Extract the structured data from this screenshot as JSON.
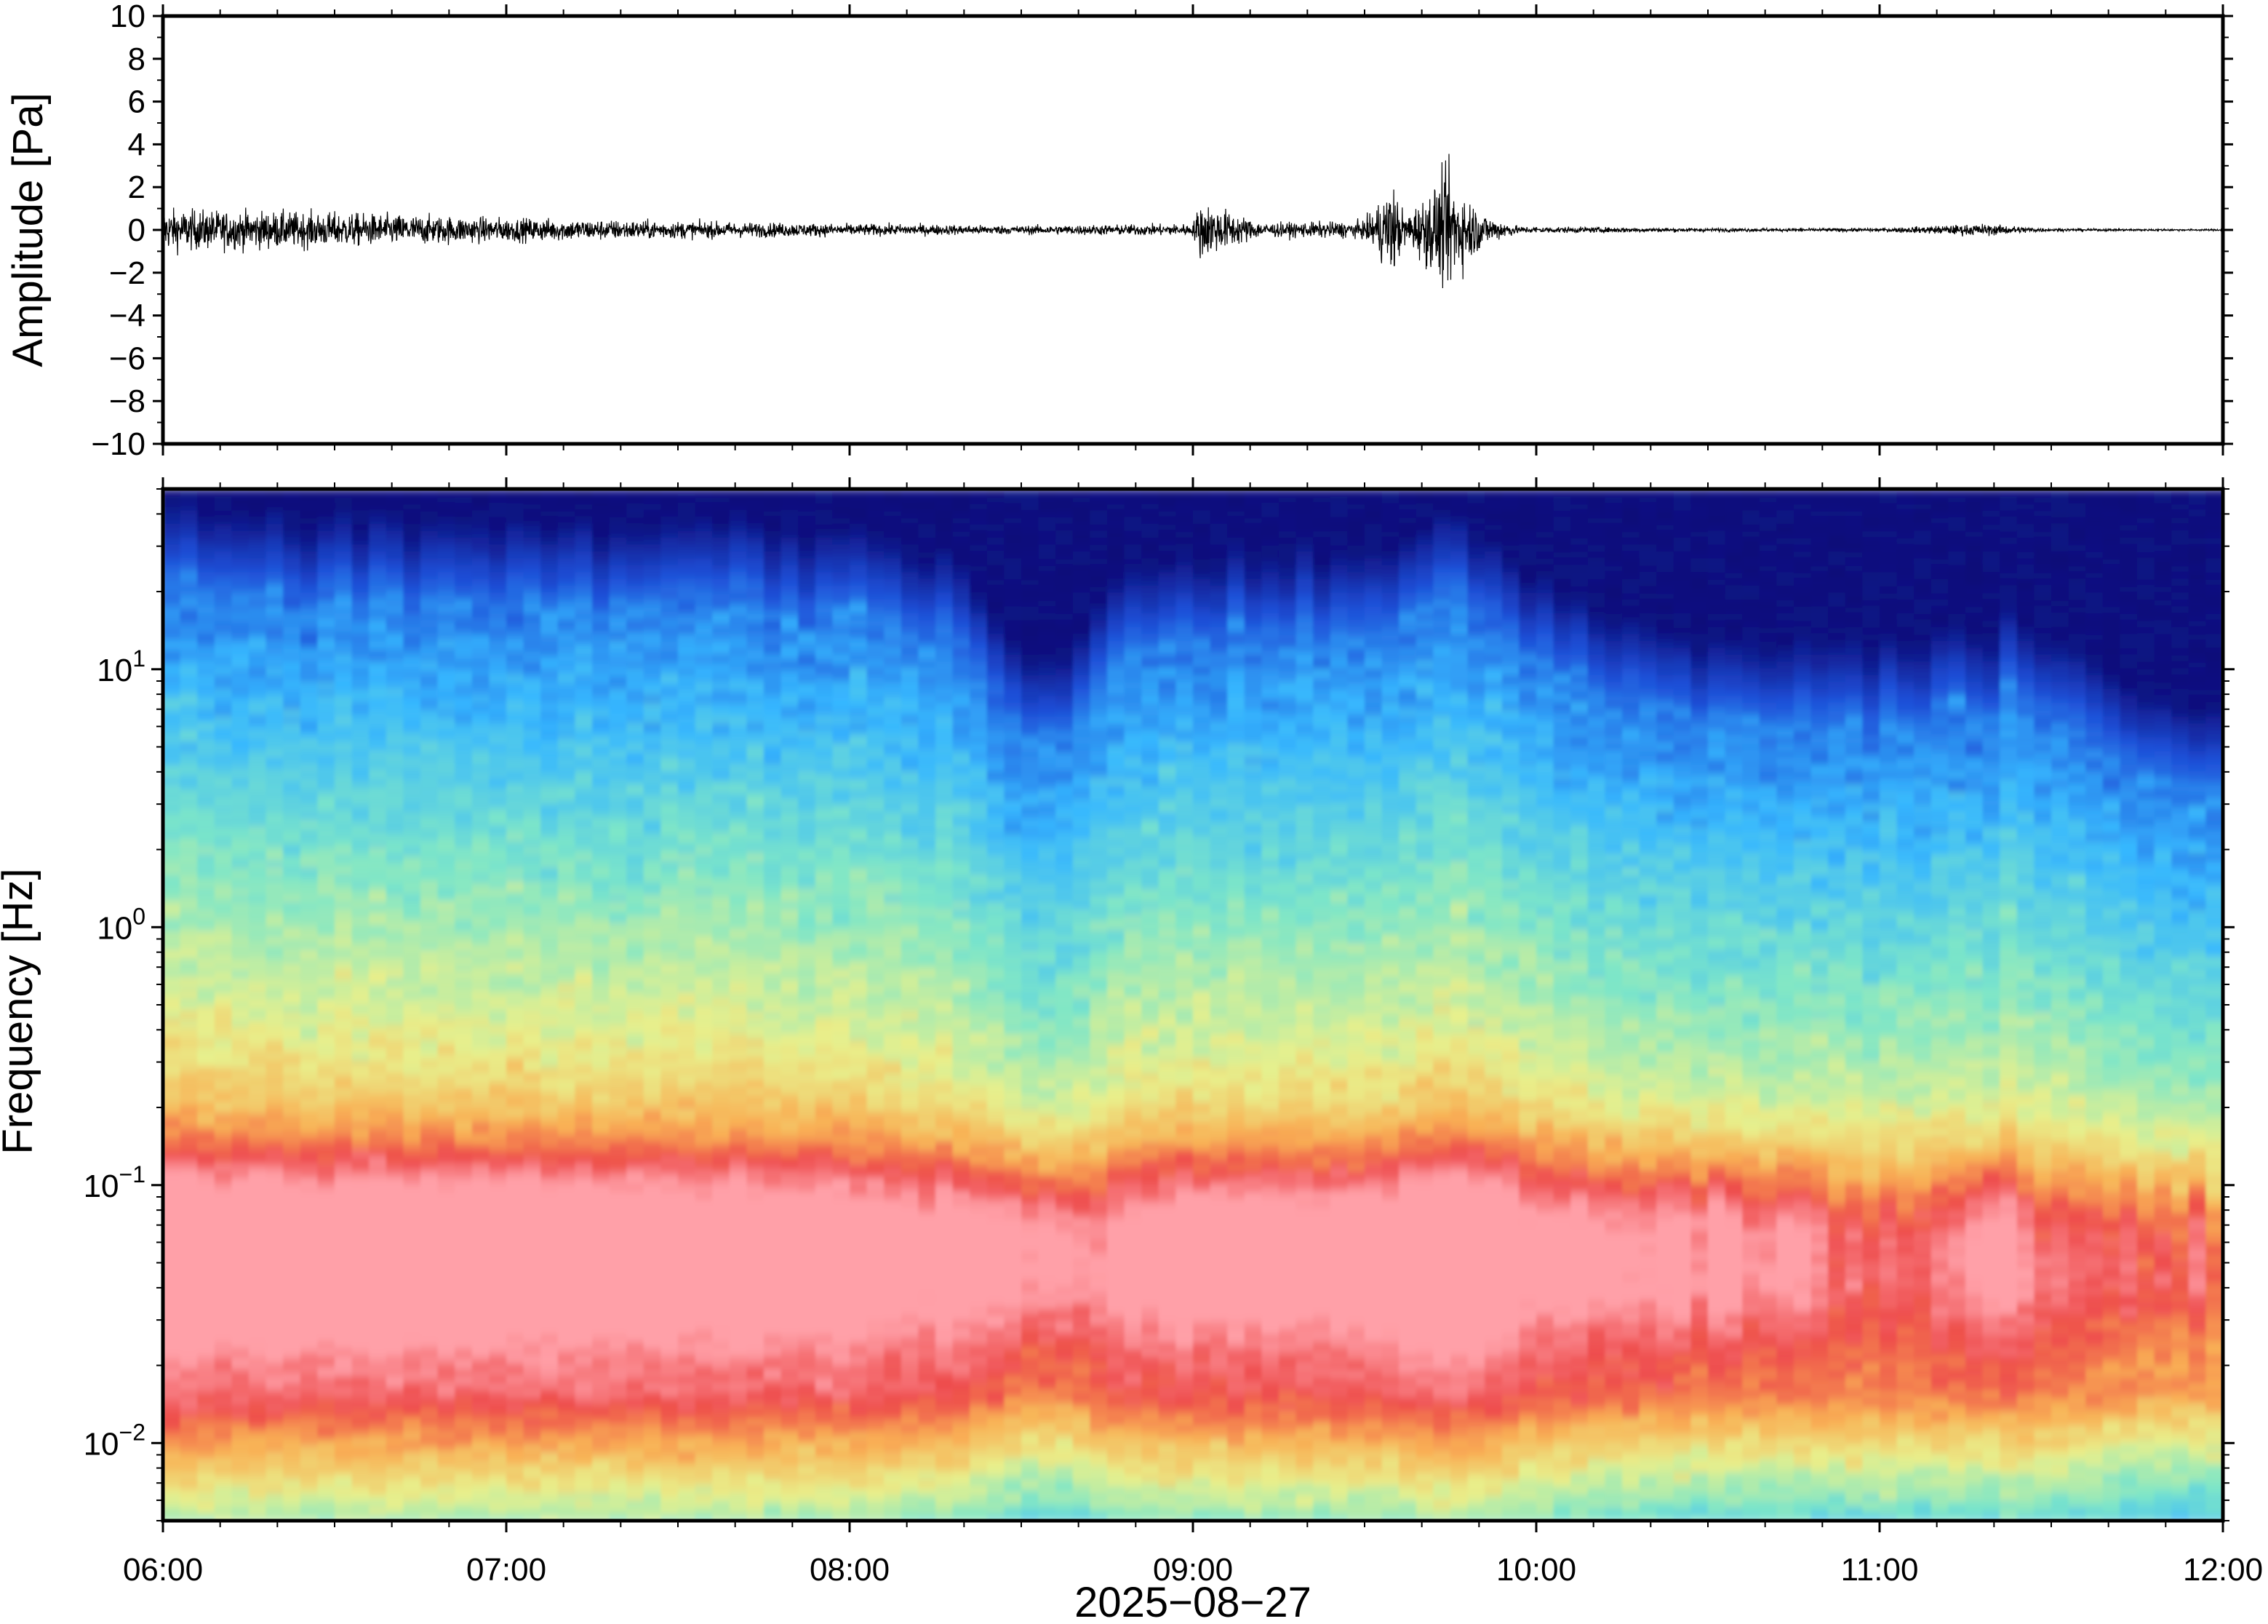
{
  "chart_data": [
    {
      "type": "line",
      "panel": "waveform",
      "ylabel": "Amplitude [Pa]",
      "ylim": [
        -10,
        10
      ],
      "yticks": [
        "10",
        "8",
        "6",
        "4",
        "2",
        "0",
        "−2",
        "−4",
        "−6",
        "−8",
        "−10"
      ],
      "ytick_values": [
        10,
        8,
        6,
        4,
        2,
        0,
        -2,
        -4,
        -6,
        -8,
        -10
      ],
      "xlim_hours": [
        6,
        12
      ],
      "series": [
        {
          "color": "#000000",
          "envelope_time_hours": [
            6.0,
            6.5,
            7.0,
            7.5,
            8.0,
            8.5,
            9.0,
            9.02,
            9.2,
            9.5,
            9.58,
            9.62,
            9.75,
            9.78,
            9.85,
            9.95,
            10.5,
            11.0,
            11.3,
            11.5,
            12.0
          ],
          "envelope_amplitude_pa": [
            1.2,
            1.0,
            0.7,
            0.5,
            0.35,
            0.25,
            0.35,
            1.7,
            0.4,
            0.5,
            2.7,
            0.8,
            3.6,
            2.4,
            0.9,
            0.2,
            0.1,
            0.1,
            0.35,
            0.08,
            0.05
          ]
        }
      ]
    },
    {
      "type": "heatmap",
      "panel": "spectrogram",
      "ylabel": "Frequency [Hz]",
      "yscale": "log",
      "ylim": [
        0.005,
        50
      ],
      "ytick_labels": [
        {
          "base": "10",
          "exp": "−2",
          "value": 0.01
        },
        {
          "base": "10",
          "exp": "−1",
          "value": 0.1
        },
        {
          "base": "10",
          "exp": "0",
          "value": 1
        },
        {
          "base": "10",
          "exp": "1",
          "value": 10
        }
      ],
      "xlabel": "2025−08−27",
      "xticks": [
        "06:00",
        "07:00",
        "08:00",
        "09:00",
        "10:00",
        "11:00",
        "12:00"
      ],
      "xtick_hours": [
        6,
        7,
        8,
        9,
        10,
        11,
        12
      ],
      "colormap": [
        "#0b0b78",
        "#1e4fd8",
        "#36b7ff",
        "#7de6c8",
        "#e8f08c",
        "#f9b054",
        "#ee4b4b",
        "#ffa0a8"
      ],
      "note_values": {
        "peak_power_frequency_hz": [
          0.03,
          0.1
        ],
        "highlight_events_hours": [
          9.6,
          9.78,
          11.33
        ]
      }
    }
  ]
}
